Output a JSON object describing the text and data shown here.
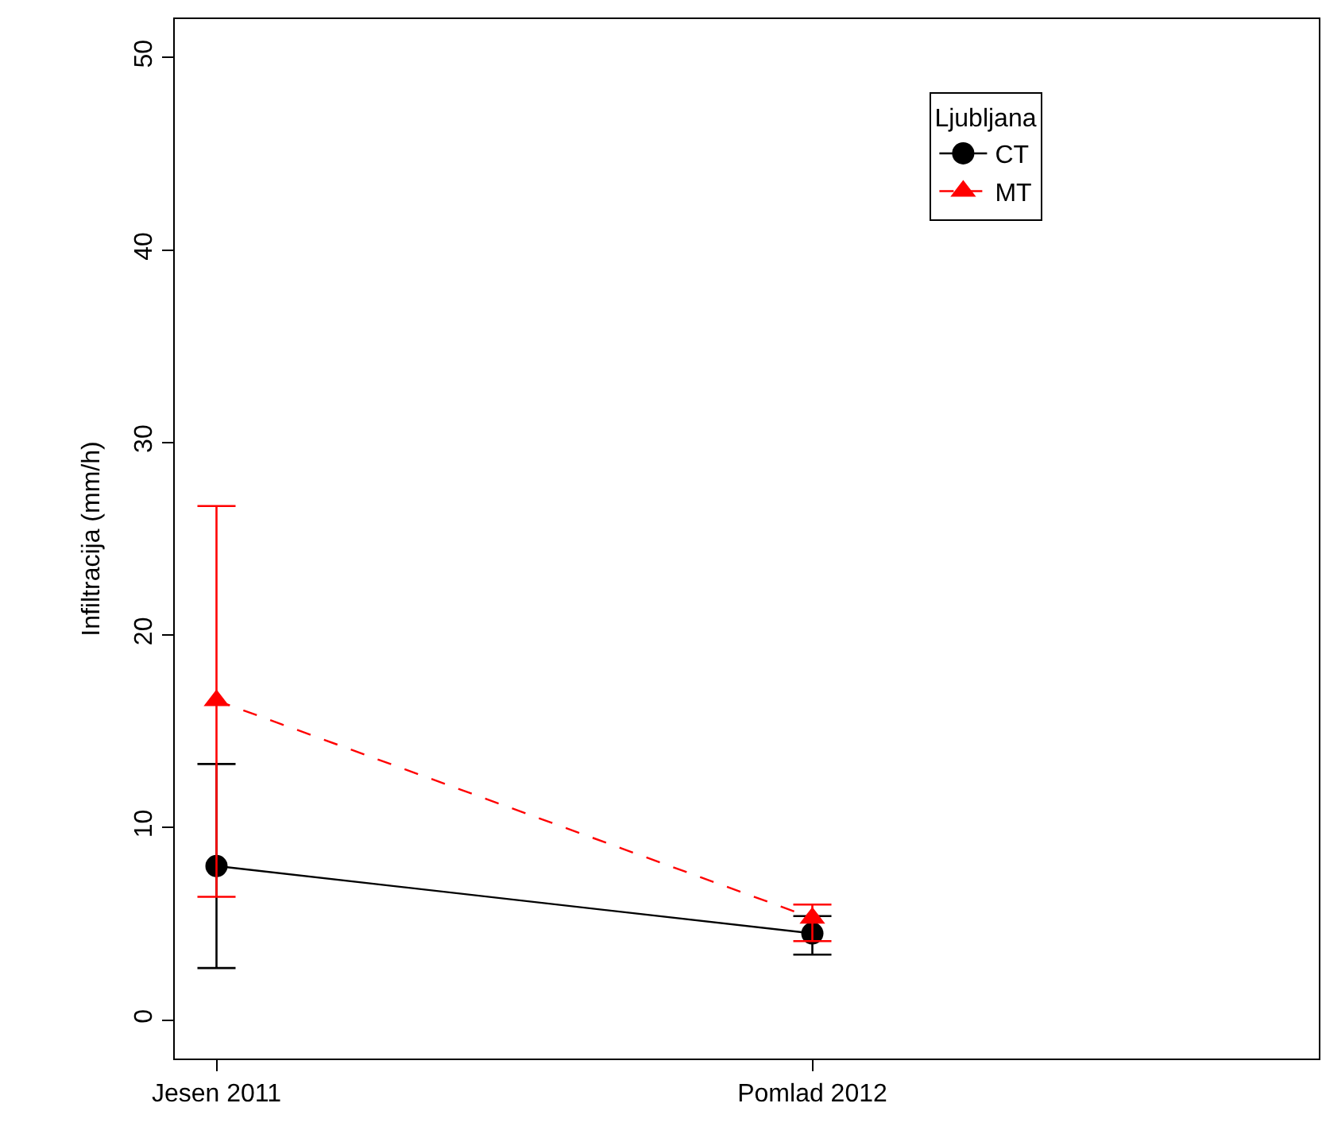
{
  "chart_data": {
    "type": "line",
    "ylabel": "Infiltracija (mm/h)",
    "legend_title": "Ljubljana",
    "legend": "top right",
    "categories": [
      "Jesen 2011",
      "Pomlad 2012"
    ],
    "ylim": [
      -2,
      52
    ],
    "yticks": [
      0,
      10,
      20,
      30,
      40,
      50
    ],
    "series": [
      {
        "name": "CT",
        "color": "#000000",
        "marker": "circle",
        "line_style": "solid",
        "values": [
          8.0,
          4.5
        ],
        "errors": [
          [
            2.7,
            13.3
          ],
          [
            3.4,
            5.4
          ]
        ]
      },
      {
        "name": "MT",
        "color": "#ff0000",
        "marker": "triangle",
        "line_style": "dashed",
        "values": [
          16.6,
          5.3
        ],
        "errors": [
          [
            6.4,
            26.7
          ],
          [
            4.1,
            6.0
          ]
        ]
      }
    ]
  }
}
